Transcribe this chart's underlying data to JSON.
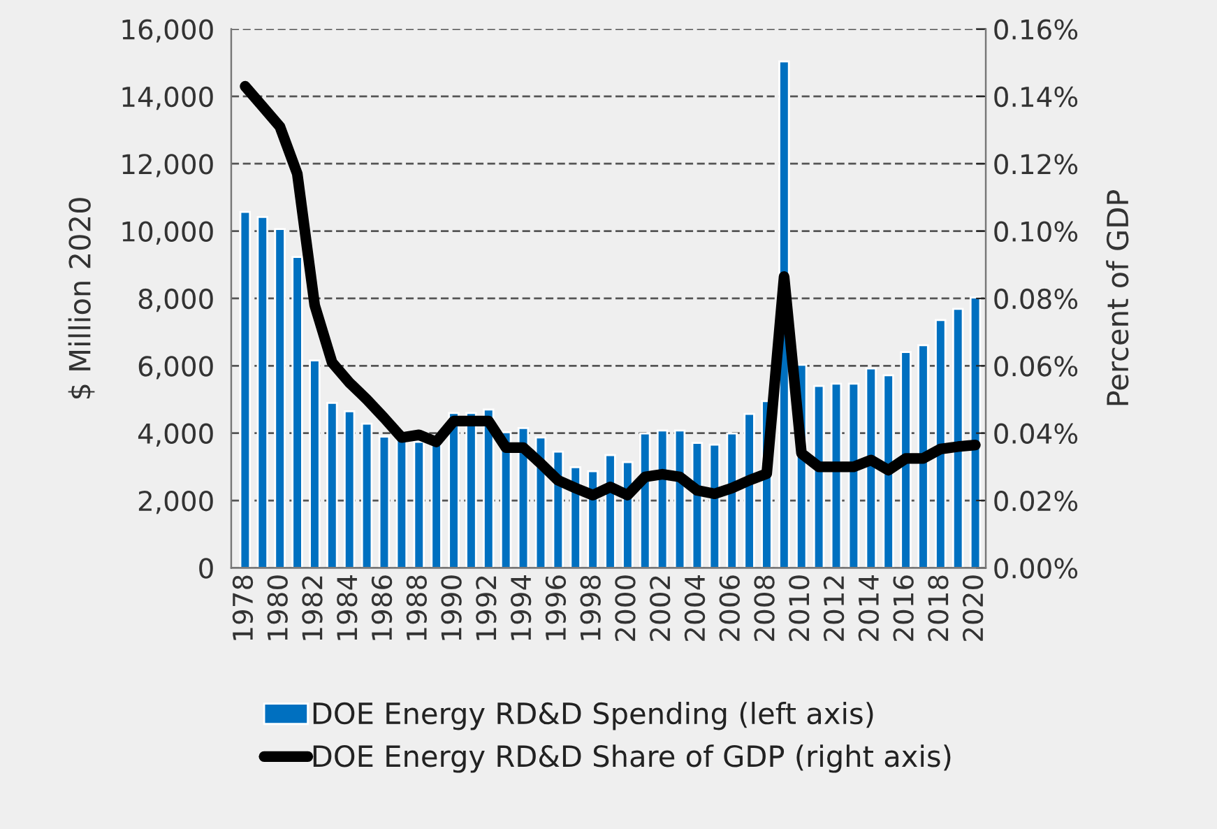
{
  "chart_data": {
    "type": "bar",
    "categories": [
      "1978",
      null,
      "1980",
      null,
      "1982",
      null,
      "1984",
      null,
      "1986",
      null,
      "1988",
      null,
      "1990",
      null,
      "1992",
      null,
      "1994",
      null,
      "1996",
      null,
      "1998",
      null,
      "2000",
      null,
      "2002",
      null,
      "2004",
      null,
      "2006",
      null,
      "2008",
      null,
      "2010",
      null,
      "2012",
      null,
      "2014",
      null,
      "2016",
      null,
      "2018",
      null,
      "2020"
    ],
    "series": [
      {
        "name": "DOE Energy RD&D Spending (left axis)",
        "color": "#0070c0",
        "values": [
          10570,
          10420,
          10060,
          9230,
          6160,
          4900,
          4650,
          4280,
          3900,
          3800,
          3740,
          3650,
          4600,
          4600,
          4700,
          4030,
          4150,
          3870,
          3450,
          2990,
          2870,
          3350,
          3140,
          3990,
          4080,
          4080,
          3710,
          3660,
          3990,
          4570,
          4950,
          15040,
          6030,
          5400,
          5470,
          5470,
          5920,
          5720,
          6410,
          6610,
          7360,
          7690,
          8030
        ]
      },
      {
        "name": "DOE Energy RD&D Share of GDP (right axis)",
        "type": "line",
        "axis": "y2",
        "color": "#000000",
        "values": [
          0.143,
          0.137,
          0.131,
          0.117,
          0.078,
          0.061,
          0.055,
          0.05,
          0.0445,
          0.0387,
          0.0395,
          0.0374,
          0.0436,
          0.0436,
          0.0436,
          0.0357,
          0.0357,
          0.031,
          0.026,
          0.0237,
          0.0216,
          0.024,
          0.0216,
          0.027,
          0.0278,
          0.027,
          0.023,
          0.022,
          0.0237,
          0.026,
          0.028,
          0.0865,
          0.034,
          0.03,
          0.03,
          0.03,
          0.032,
          0.029,
          0.0325,
          0.0325,
          0.0353,
          0.036,
          0.0365
        ]
      }
    ],
    "ylabel": "$ Million 2020",
    "y2label": "Percent of GDP",
    "ylim": [
      0,
      16000
    ],
    "yticks": [
      {
        "value": 0,
        "label": "0"
      },
      {
        "value": 2000,
        "label": "2,000"
      },
      {
        "value": 4000,
        "label": "4,000"
      },
      {
        "value": 6000,
        "label": "6,000"
      },
      {
        "value": 8000,
        "label": "8,000"
      },
      {
        "value": 10000,
        "label": "10,000"
      },
      {
        "value": 12000,
        "label": "12,000"
      },
      {
        "value": 14000,
        "label": "14,000"
      },
      {
        "value": 16000,
        "label": "16,000"
      }
    ],
    "y2lim": [
      0,
      0.16
    ],
    "y2ticks": [
      {
        "value": 0,
        "label": "0.00%"
      },
      {
        "value": 0.02,
        "label": "0.02%"
      },
      {
        "value": 0.04,
        "label": "0.04%"
      },
      {
        "value": 0.06,
        "label": "0.06%"
      },
      {
        "value": 0.08,
        "label": "0.08%"
      },
      {
        "value": 0.1,
        "label": "0.10%"
      },
      {
        "value": 0.12,
        "label": "0.12%"
      },
      {
        "value": 0.14,
        "label": "0.14%"
      },
      {
        "value": 0.16,
        "label": "0.16%"
      }
    ],
    "grid": "y",
    "legend": "bottom",
    "line_style": "solid"
  }
}
